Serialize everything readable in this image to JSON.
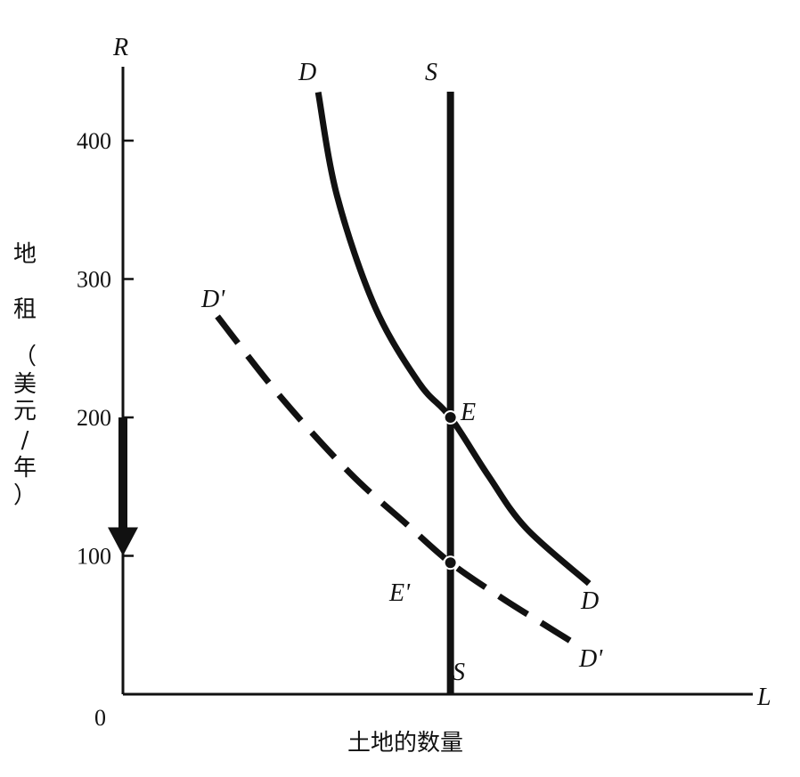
{
  "chart_data": {
    "type": "line",
    "x_axis_symbol": "L",
    "y_axis_symbol": "R",
    "xlabel": "土地的数量",
    "ylabel_chars": [
      "地",
      "租",
      "（",
      "美",
      "元",
      "/",
      "年",
      "）"
    ],
    "origin_label": "0",
    "yticks": [
      100,
      200,
      300,
      400
    ],
    "ylim": [
      0,
      400
    ],
    "supply_level_x": 0.52,
    "series": [
      {
        "name": "D",
        "end_label": "D",
        "style": "solid",
        "points": [
          [
            0.31,
            435
          ],
          [
            0.34,
            360
          ],
          [
            0.4,
            280
          ],
          [
            0.47,
            225
          ],
          [
            0.52,
            200
          ],
          [
            0.58,
            158
          ],
          [
            0.64,
            120
          ],
          [
            0.74,
            80
          ]
        ]
      },
      {
        "name": "D'",
        "end_label": "D'",
        "style": "dashed",
        "points": [
          [
            0.15,
            273
          ],
          [
            0.25,
            215
          ],
          [
            0.36,
            160
          ],
          [
            0.45,
            123
          ],
          [
            0.52,
            95
          ],
          [
            0.6,
            70
          ],
          [
            0.67,
            50
          ],
          [
            0.73,
            33
          ]
        ]
      },
      {
        "name": "S",
        "end_label": "S",
        "style": "solid-vertical",
        "points": [
          [
            0.52,
            0
          ],
          [
            0.52,
            435
          ]
        ]
      }
    ],
    "points": [
      {
        "label": "E",
        "x": 0.52,
        "y": 200
      },
      {
        "label": "E'",
        "x": 0.52,
        "y": 95
      }
    ],
    "arrow": {
      "from": 200,
      "to": 100,
      "direction": "down"
    }
  }
}
